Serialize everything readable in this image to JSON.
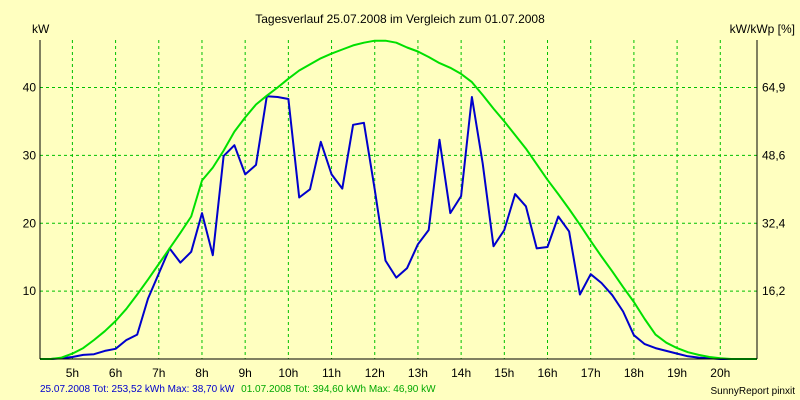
{
  "chart_data": {
    "type": "line",
    "title": "Tagesverlauf 25.07.2008 im Vergleich zum 01.07.2008",
    "ylabel_left": "kW",
    "ylabel_right": "kW/kWp [%]",
    "xlim": [
      4.25,
      20.85
    ],
    "ylim": [
      0,
      47
    ],
    "grid": true,
    "x_ticks": [
      5,
      6,
      7,
      8,
      9,
      10,
      11,
      12,
      13,
      14,
      15,
      16,
      17,
      18,
      19,
      20
    ],
    "x_tick_labels": [
      "5h",
      "6h",
      "7h",
      "8h",
      "9h",
      "10h",
      "11h",
      "12h",
      "13h",
      "14h",
      "15h",
      "16h",
      "17h",
      "18h",
      "19h",
      "20h"
    ],
    "y_left_ticks": [
      10,
      20,
      30,
      40
    ],
    "y_left_tick_labels": [
      "10",
      "20",
      "30",
      "40"
    ],
    "y_right_ticks": [
      10,
      20,
      30,
      40
    ],
    "y_right_tick_labels": [
      "16,2",
      "32,4",
      "48,6",
      "64,9"
    ],
    "colors": {
      "background": "#ffffc0",
      "grid": "#00c000",
      "axis": "#000000"
    },
    "series": [
      {
        "color": "#0000cc",
        "x": [
          4.25,
          4.5,
          4.75,
          5.0,
          5.25,
          5.5,
          5.75,
          6.0,
          6.25,
          6.5,
          6.75,
          7.0,
          7.25,
          7.5,
          7.75,
          8.0,
          8.25,
          8.5,
          8.75,
          9.0,
          9.25,
          9.5,
          9.75,
          10.0,
          10.25,
          10.5,
          10.75,
          11.0,
          11.25,
          11.5,
          11.75,
          12.0,
          12.25,
          12.5,
          12.75,
          13.0,
          13.25,
          13.5,
          13.75,
          14.0,
          14.25,
          14.5,
          14.75,
          15.0,
          15.25,
          15.5,
          15.75,
          16.0,
          16.25,
          16.5,
          16.75,
          17.0,
          17.25,
          17.5,
          17.75,
          18.0,
          18.25,
          18.5,
          18.75,
          19.0,
          19.25,
          19.5,
          19.75,
          20.0,
          20.25,
          20.5,
          20.85
        ],
        "values": [
          0,
          0,
          0.1,
          0.3,
          0.6,
          0.7,
          1.2,
          1.5,
          2.8,
          3.6,
          8.9,
          12.6,
          16.3,
          14.2,
          15.8,
          21.5,
          15.3,
          29.9,
          31.5,
          27.2,
          28.6,
          38.7,
          38.6,
          38.3,
          23.8,
          25.0,
          32.0,
          27.2,
          25.1,
          34.5,
          34.8,
          25.0,
          14.5,
          12.0,
          13.4,
          16.9,
          19.0,
          32.3,
          21.5,
          24.0,
          38.6,
          28.8,
          16.6,
          19.0,
          24.3,
          22.5,
          16.3,
          16.5,
          21.0,
          18.8,
          9.5,
          12.5,
          11.2,
          9.4,
          7.0,
          3.5,
          2.2,
          1.6,
          1.2,
          0.8,
          0.4,
          0.2,
          0.1,
          0,
          0,
          0,
          0
        ]
      },
      {
        "color": "#00e000",
        "x": [
          4.25,
          4.5,
          4.75,
          5.0,
          5.25,
          5.5,
          5.75,
          6.0,
          6.25,
          6.5,
          6.75,
          7.0,
          7.25,
          7.5,
          7.75,
          8.0,
          8.25,
          8.5,
          8.75,
          9.0,
          9.25,
          9.5,
          9.75,
          10.0,
          10.25,
          10.5,
          10.75,
          11.0,
          11.25,
          11.5,
          11.75,
          12.0,
          12.25,
          12.5,
          12.75,
          13.0,
          13.25,
          13.5,
          13.75,
          14.0,
          14.25,
          14.5,
          14.75,
          15.0,
          15.25,
          15.5,
          15.75,
          16.0,
          16.25,
          16.5,
          16.75,
          17.0,
          17.25,
          17.5,
          17.75,
          18.0,
          18.25,
          18.5,
          18.75,
          19.0,
          19.25,
          19.5,
          19.75,
          20.0,
          20.25,
          20.5,
          20.85
        ],
        "values": [
          0,
          0,
          0.2,
          0.8,
          1.6,
          2.8,
          4.1,
          5.6,
          7.4,
          9.5,
          11.7,
          14.0,
          16.3,
          18.6,
          21.0,
          26.3,
          28.2,
          30.7,
          33.5,
          35.6,
          37.5,
          38.8,
          40.0,
          41.3,
          42.5,
          43.4,
          44.3,
          45.0,
          45.6,
          46.2,
          46.6,
          46.9,
          46.9,
          46.6,
          45.9,
          45.3,
          44.5,
          43.6,
          42.9,
          42.0,
          40.8,
          38.9,
          36.9,
          35.0,
          33.0,
          31.0,
          28.7,
          26.4,
          24.3,
          22.1,
          19.8,
          17.4,
          15.1,
          12.9,
          10.6,
          8.4,
          5.9,
          3.6,
          2.4,
          1.6,
          1.0,
          0.6,
          0.3,
          0.1,
          0,
          0,
          0
        ]
      }
    ]
  },
  "footer": {
    "series1_label": "25.07.2008 Tot: 253,52 kWh Max: 38,70 kW",
    "series2_label": "01.07.2008 Tot: 394,60 kWh Max: 46,90 kW",
    "credit": "SunnyReport pinxit"
  }
}
